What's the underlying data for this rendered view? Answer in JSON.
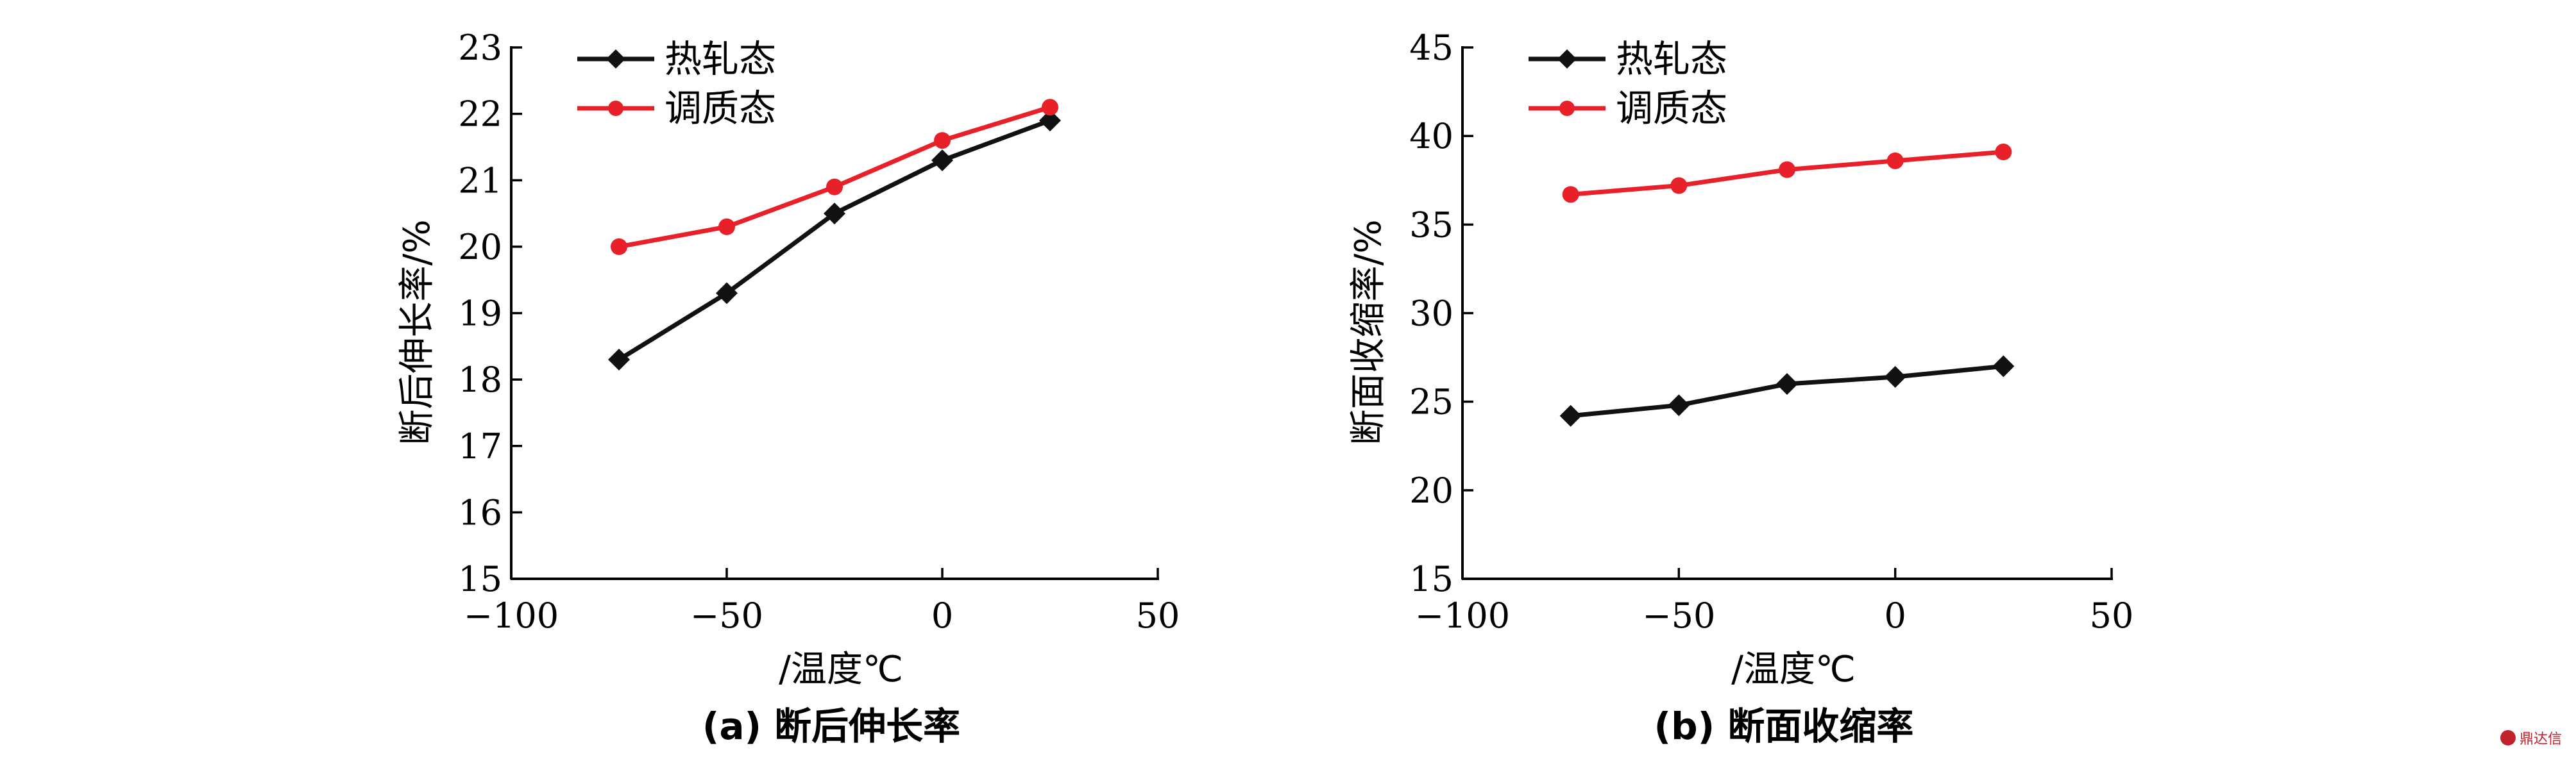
{
  "chart_data": [
    {
      "type": "line",
      "panel_label": "(a)",
      "title": "断后伸长率",
      "xlabel": "/温度℃",
      "ylabel": "断后伸长率/%",
      "xlim": [
        -100,
        50
      ],
      "ylim": [
        15,
        23
      ],
      "xticks": [
        -100,
        -50,
        0,
        50
      ],
      "xtick_labels": [
        "−100",
        "−50",
        "0",
        "50"
      ],
      "yticks": [
        15,
        16,
        17,
        18,
        19,
        20,
        21,
        22,
        23
      ],
      "ytick_labels": [
        "15",
        "16",
        "17",
        "18",
        "19",
        "20",
        "21",
        "22",
        "23"
      ],
      "grid": false,
      "legend_position": "top-left",
      "x": [
        -75,
        -50,
        -25,
        0,
        25
      ],
      "series": [
        {
          "name": "热轧态",
          "values": [
            18.3,
            19.3,
            20.5,
            21.3,
            21.9
          ],
          "color": "#111111",
          "marker": "diamond"
        },
        {
          "name": "调质态",
          "values": [
            20.0,
            20.3,
            20.9,
            21.6,
            22.1
          ],
          "color": "#e8202a",
          "marker": "circle"
        }
      ]
    },
    {
      "type": "line",
      "panel_label": "(b)",
      "title": "断面收缩率",
      "xlabel": "/温度℃",
      "ylabel": "断面收缩率/%",
      "xlim": [
        -100,
        50
      ],
      "ylim": [
        15,
        45
      ],
      "xticks": [
        -100,
        -50,
        0,
        50
      ],
      "xtick_labels": [
        "−100",
        "−50",
        "0",
        "50"
      ],
      "yticks": [
        15,
        20,
        25,
        30,
        35,
        40,
        45
      ],
      "ytick_labels": [
        "15",
        "20",
        "25",
        "30",
        "35",
        "40",
        "45"
      ],
      "grid": false,
      "legend_position": "top-left",
      "x": [
        -75,
        -50,
        -25,
        0,
        25
      ],
      "series": [
        {
          "name": "热轧态",
          "values": [
            24.2,
            24.8,
            26.0,
            26.4,
            27.0
          ],
          "color": "#111111",
          "marker": "diamond"
        },
        {
          "name": "调质态",
          "values": [
            36.7,
            37.2,
            38.1,
            38.6,
            39.1
          ],
          "color": "#e8202a",
          "marker": "circle"
        }
      ]
    }
  ],
  "watermark": {
    "text": "鼎达信",
    "color": "#c0232b"
  }
}
